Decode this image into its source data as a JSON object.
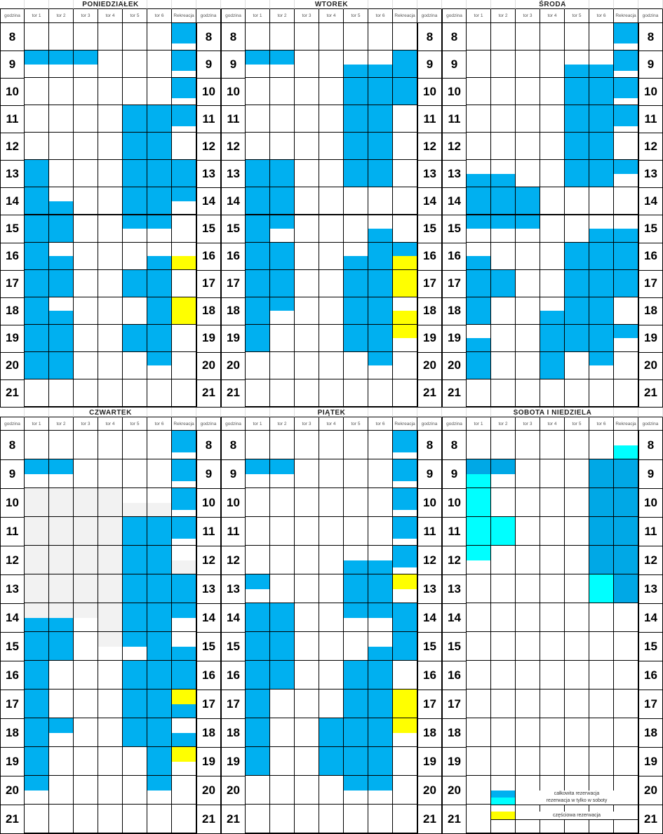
{
  "hour_header": "godzina",
  "lane_headers": [
    "tor 1",
    "tor 2",
    "tor 3",
    "tor 4",
    "tor 5",
    "tor 6",
    "Rekreacja"
  ],
  "hours": [
    "8",
    "9",
    "10",
    "11",
    "12",
    "13",
    "14",
    "15",
    "16",
    "17",
    "18",
    "19",
    "20",
    "21"
  ],
  "colors": {
    "b": "#00B0F0",
    "y": "#FFFF00",
    "c": "#00FFFF",
    "g": "#F2F2F2",
    "sat_b": "#00A8E6"
  },
  "days": [
    {
      "title": "PONIEDZIAŁEK",
      "lanes": [
        ".... bb.. .... .... .... bbbb bbbb bbbb bbbb bbbb bbbb bbbb bbbb ....",
        ".... bb.. .... .... .... .... ..bb bbbb ..bb bbbb ..bb bbbb bbbb ....",
        ".... bb.. .... .... .... .... .... .... .... .... .... .... .... ....",
        ".... .... .... .... .... .... .... .... .... .... .... .... .... ....",
        ".... .... .... bbbb bbbb bbbb bbbb bb.. .... bbbb .... bbbb .... ....",
        ".... .... .... bbbb bbbb bbbb bbbb bb.. ..bb bbbb bbbb bbbb bb.. ....",
        "bbb. bbb. bbb. bbb. .... bbbb bb.. .... ..yy .... yyyy .... .... ...."
      ]
    },
    {
      "title": "WTOREK",
      "lanes": [
        ".... bb.. .... .... .... bbbb bbbb bbbb bbbb bbbb bbbb bbbb .... ....",
        ".... bb.. .... .... .... bbbb bbbb bb.. bbbb bbbb bb.. .... .... ....",
        ".... .... .... .... .... .... .... .... .... .... .... .... .... ....",
        ".... .... .... .... .... .... .... .... .... .... .... .... .... ....",
        ".... ..bb bbbb bbbb bbbb bbbb .... .... ..bb bbbb bbbb bbbb .... ....",
        ".... ..bb bbbb bbbb bbbb bbbb .... ..bb bbbb bbbb bbbb bbbb bb.. ....",
        ".... bbbb bbbb .... .... .... .... .... bbyy yyyy ..yy yy.. .... ...."
      ]
    },
    {
      "title": "ŚRODA",
      "lanes": [
        ".... .... .... .... .... ..bb bbbb bb.. ..bb bbbb bbbb ..bb bbbb ....",
        ".... .... .... .... .... ..bb bbbb bb.. .... bbbb .... .... .... ....",
        ".... .... .... .... .... .... bbbb bb.. .... .... .... .... .... ....",
        ".... .... .... .... .... .... .... .... .... .... ..bb bbbb bbbb ....",
        ".... ..bb bbbb bbbb bbbb bbbb .... .... bbbb bbbb bbbb bbbb .... ....",
        ".... ..bb bbbb bbbb bbbb bbbb .... ..bb bbbb bbbb bbbb bbbb bb.. ....",
        "bbb. bbb. bbb. bbb. .... bb.. .... ..bb bbbb bbbb .... bb.. .... ...."
      ]
    },
    {
      "title": "CZWARTEK",
      "lanes": [
        ".... bb.. gggg gggg gggg gggg ggbb bbbb bbbb bbbb bbbb bbbb bb.. ....",
        ".... bb.. gggg gggg gggg gggg ggbb bbbb .... .... bb.. .... .... ....",
        ".... .... gggg gggg gggg gggg gg.. .... .... .... .... .... .... ....",
        ".... .... gggg gggg gggg gggg gggg gg.. .... .... .... .... .... ....",
        ".... .... ..gg bbbb bbbb bbbb bbbb bb.. bbbb bbbb bbbb .... .... ....",
        ".... .... ..gg bbbb bbbb bbbb bbbb bbbb bbbb bbbb bbbb bbbb bb.. ....",
        "bbb. bbb. bbb. bbb. ..gg bbbb bb.. ..bb bbbb yybb ..bb yy.. .... ...."
      ]
    },
    {
      "title": "PIĄTEK",
      "lanes": [
        ".... bb.. .... .... .... bb.. bbbb bbbb bbbb bbbb bbbb bbbb .... ....",
        ".... bb.. .... .... .... .... bbbb bbbb bbbb .... .... .... .... ....",
        ".... .... .... .... .... .... .... .... .... .... .... .... .... ....",
        ".... .... .... .... .... .... .... .... .... .... bbbb bbbb .... ....",
        ".... .... .... .... ..bb bbbb bb.. .... bbbb bbbb bbbb bbbb bb.. ....",
        ".... .... .... .... ..bb bbbb bb.. ..bb bbbb bbbb bbbb bbbb bb.. ....",
        "bbb. bbb. bbb. bbb. bbb. yy.. bbbb bbbb .... yyyy yy.. .... .... ...."
      ]
    },
    {
      "title": "SOBOTA  I  NIEDZIELA",
      "lanes": [
        ".... bbcc cccc cccc cc.. .... .... .... .... .... .... .... .... ....",
        ".... bb.. .... cccc .... .... .... .... .... .... .... .... .... ....",
        ".... .... .... .... .... .... .... .... .... .... .... .... .... ....",
        ".... .... .... .... .... .... .... .... .... .... .... .... .... ....",
        ".... .... .... .... .... .... .... .... .... .... .... .... .... ....",
        ".... bbbb bbbb bbbb bbbb cccc .... .... .... .... .... .... .... ....",
        "..cc bbbb bbbb bbbb bbbb bbbb .... .... .... .... .... .... .... ...."
      ]
    }
  ],
  "legend": [
    {
      "color": "#00B0F0",
      "label": "całkowita rezerwacja"
    },
    {
      "color": "#00FFFF",
      "label": "rezerwacja w tylko w soboty"
    },
    {
      "color": "#FFFF00",
      "label": "częściowa rezerwacja"
    }
  ]
}
